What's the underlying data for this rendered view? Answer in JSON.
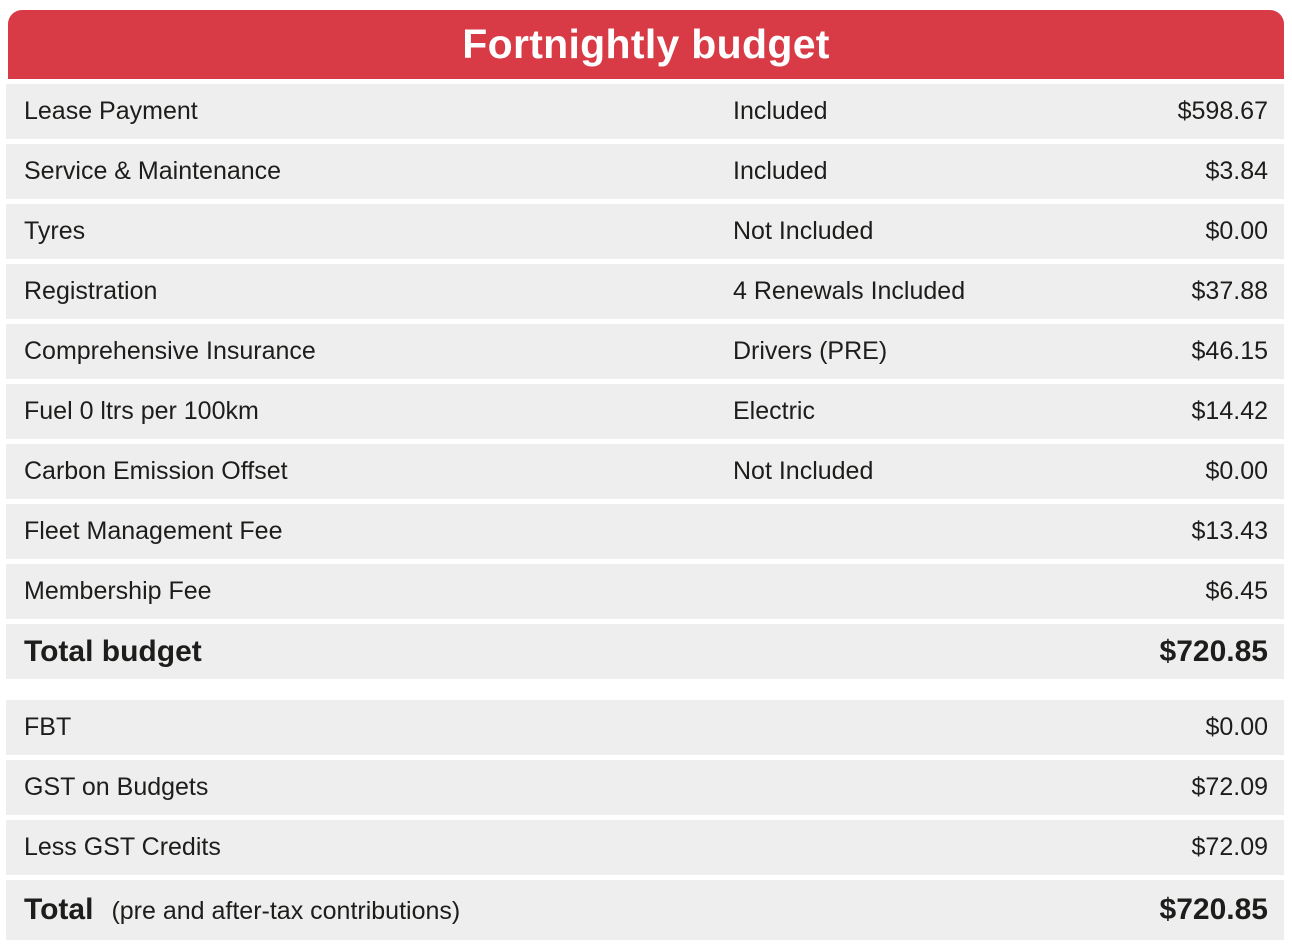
{
  "header": {
    "title": "Fortnightly budget"
  },
  "colors": {
    "header_bg": "#d83b45",
    "header_text": "#ffffff",
    "row_bg": "#eeeeee",
    "text": "#1d1d1b",
    "page_bg": "#ffffff"
  },
  "budget_rows": [
    {
      "label": "Lease Payment",
      "status": "Included",
      "value": "$598.67"
    },
    {
      "label": "Service & Maintenance",
      "status": "Included",
      "value": "$3.84"
    },
    {
      "label": "Tyres",
      "status": "Not Included",
      "value": "$0.00"
    },
    {
      "label": "Registration",
      "status": "4 Renewals Included",
      "value": "$37.88"
    },
    {
      "label": "Comprehensive Insurance",
      "status": "Drivers (PRE)",
      "value": "$46.15"
    },
    {
      "label": "Fuel 0 ltrs per 100km",
      "status": "Electric",
      "value": "$14.42"
    },
    {
      "label": "Carbon Emission Offset",
      "status": "Not Included",
      "value": "$0.00"
    },
    {
      "label": "Fleet Management Fee",
      "status": "",
      "value": "$13.43"
    },
    {
      "label": "Membership Fee",
      "status": "",
      "value": "$6.45"
    }
  ],
  "total_budget": {
    "label": "Total budget",
    "value": "$720.85"
  },
  "tax_rows": [
    {
      "label": "FBT",
      "value": "$0.00"
    },
    {
      "label": "GST on Budgets",
      "value": "$72.09"
    },
    {
      "label": "Less GST Credits",
      "value": "$72.09"
    }
  ],
  "grand_total": {
    "label": "Total",
    "note": "(pre and after-tax contributions)",
    "value": "$720.85"
  }
}
